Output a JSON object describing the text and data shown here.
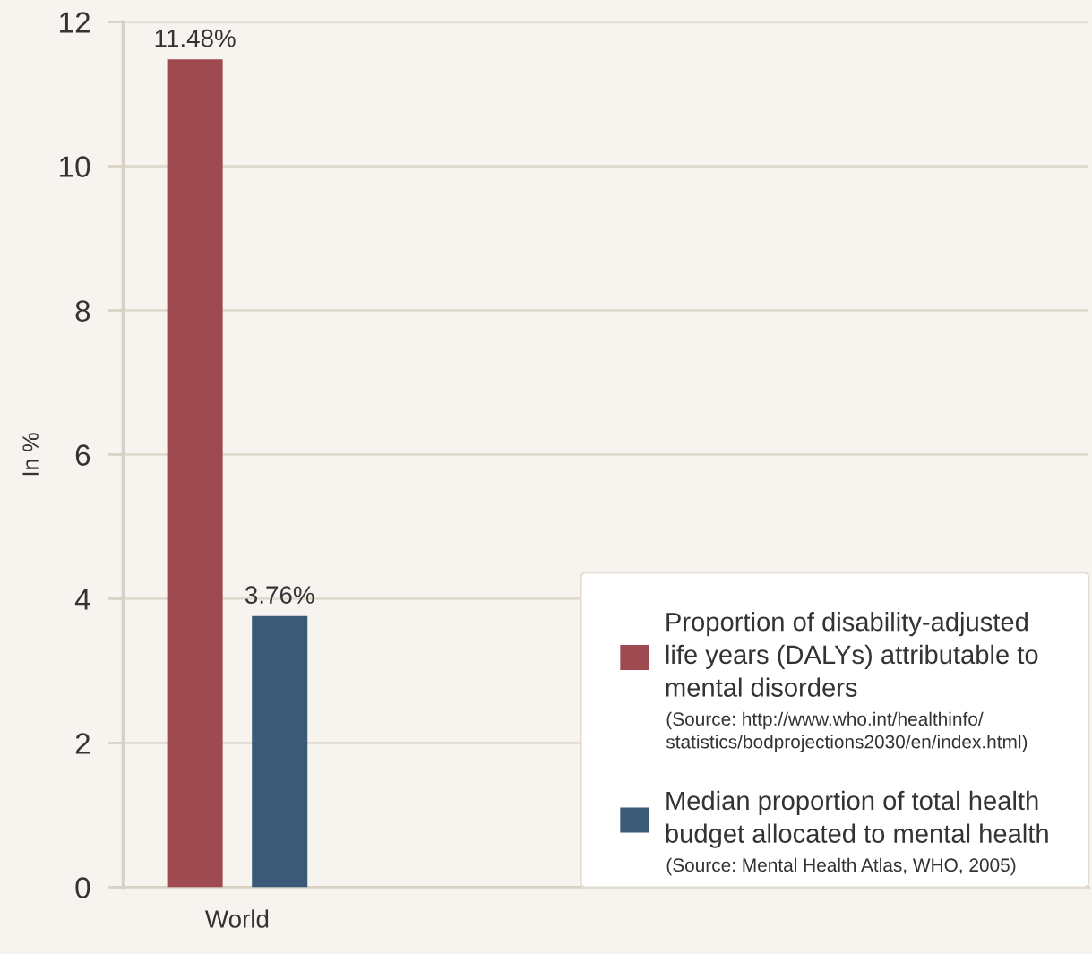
{
  "chart_data": {
    "type": "bar",
    "categories": [
      "World"
    ],
    "ylabel": "In %",
    "series": [
      {
        "name": "Proportion of disability-adjusted\nlife years (DALYs) attributable to\nmental disorders",
        "color": "#9e4a50",
        "values": [
          11.48
        ],
        "value_labels": [
          "11.48%"
        ]
      },
      {
        "name": "Median proportion of total health\nbudget allocated to mental health",
        "color": "#3b5a78",
        "values": [
          3.76
        ],
        "value_labels": [
          "3.76%"
        ]
      }
    ],
    "annotations": [
      "(Source: http://www.who.int/healthinfo/\nstatistics/bodprojections2030/en/index.html)",
      "(Source: Mental Health Atlas, WHO, 2005)"
    ],
    "ylim": [
      0,
      12
    ],
    "yticks": [
      0,
      2,
      4,
      6,
      8,
      10,
      12
    ],
    "grid": "y",
    "legend": "bottom right"
  }
}
